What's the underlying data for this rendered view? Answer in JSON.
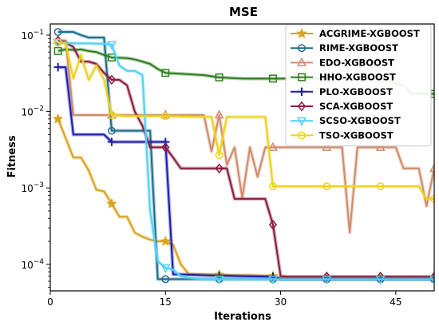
{
  "chart_data": {
    "type": "line",
    "title": "MSE",
    "xlabel": "Iterations",
    "ylabel": "Fitness",
    "yscale": "log",
    "xlim": [
      0,
      50
    ],
    "ylim": [
      4.5e-05,
      0.14
    ],
    "xticks": [
      0,
      15,
      30,
      45
    ],
    "yticks": [
      {
        "value": 0.0001,
        "base": "10",
        "exp": "−4"
      },
      {
        "value": 0.001,
        "base": "10",
        "exp": "−3"
      },
      {
        "value": 0.01,
        "base": "10",
        "exp": "−2"
      },
      {
        "value": 0.1,
        "base": "10",
        "exp": "−1"
      }
    ],
    "grid": false,
    "legend_position": "top-right",
    "series": [
      {
        "name": "ACGRIME-XGBOOST",
        "color": "#D9A520",
        "marker": "star",
        "marker_x": [
          1,
          8,
          15,
          22,
          29,
          36,
          43,
          50
        ],
        "x": [
          1,
          2,
          3,
          4,
          5,
          6,
          7,
          8,
          9,
          10,
          11,
          12,
          13,
          14,
          15,
          16,
          17,
          18,
          20,
          22,
          24,
          26,
          28,
          29,
          30,
          33,
          36,
          40,
          43,
          46,
          50
        ],
        "y": [
          0.008,
          0.0045,
          0.0025,
          0.0025,
          0.0017,
          0.00095,
          0.0009,
          0.00062,
          0.00042,
          0.00042,
          0.00026,
          0.00023,
          0.00021,
          0.0002,
          0.0002,
          0.00018,
          0.0001,
          7.5e-05,
          7.4e-05,
          7.3e-05,
          7.2e-05,
          7.2e-05,
          7.1e-05,
          7e-05,
          6.6e-05,
          6.6e-05,
          6.6e-05,
          6.6e-05,
          6.6e-05,
          6.6e-05,
          6.6e-05
        ]
      },
      {
        "name": "RIME-XGBOOST",
        "color": "#1F6E8C",
        "marker": "circle",
        "marker_x": [
          1,
          8,
          15,
          22,
          29,
          36,
          43,
          50
        ],
        "x": [
          1,
          3,
          4,
          5,
          7,
          8,
          9,
          10,
          11,
          12,
          13,
          14,
          15,
          20,
          25,
          30,
          35,
          40,
          45,
          50
        ],
        "y": [
          0.11,
          0.11,
          0.1,
          0.093,
          0.093,
          0.0056,
          0.0056,
          0.0056,
          0.0056,
          0.0056,
          0.0056,
          6.4e-05,
          6.4e-05,
          6.4e-05,
          6.4e-05,
          6.4e-05,
          6.4e-05,
          6.4e-05,
          6.4e-05,
          6.4e-05
        ]
      },
      {
        "name": "EDO-XGBOOST",
        "color": "#D08B6B",
        "marker": "triangle",
        "marker_x": [
          1,
          8,
          15,
          22,
          29,
          36,
          43,
          50
        ],
        "x": [
          1,
          2,
          3,
          4,
          5,
          6,
          7,
          8,
          10,
          15,
          20,
          21,
          22,
          23,
          24,
          25,
          26,
          27,
          28,
          29,
          30,
          33,
          36,
          37,
          38,
          39,
          40,
          41,
          43,
          45,
          46,
          47,
          48,
          49,
          50
        ],
        "y": [
          0.085,
          0.085,
          0.009,
          0.009,
          0.009,
          0.009,
          0.009,
          0.009,
          0.009,
          0.009,
          0.009,
          0.003,
          0.009,
          0.002,
          0.0034,
          0.00074,
          0.0034,
          0.0014,
          0.0034,
          0.0034,
          0.0034,
          0.0034,
          0.0034,
          0.0034,
          0.0034,
          0.00026,
          0.0034,
          0.0034,
          0.0034,
          0.0034,
          0.0018,
          0.0018,
          0.0018,
          0.00058,
          0.0018
        ]
      },
      {
        "name": "HHO-XGBOOST",
        "color": "#2E7D1F",
        "marker": "square",
        "marker_x": [
          1,
          8,
          15,
          22,
          29,
          36,
          43,
          50
        ],
        "x": [
          1,
          2,
          3,
          4,
          5,
          6,
          7,
          8,
          10,
          11,
          12,
          13,
          14,
          15,
          20,
          22,
          25,
          29,
          36,
          43,
          46,
          47,
          48,
          50
        ],
        "y": [
          0.062,
          0.065,
          0.064,
          0.065,
          0.062,
          0.06,
          0.055,
          0.051,
          0.05,
          0.048,
          0.045,
          0.042,
          0.036,
          0.032,
          0.03,
          0.028,
          0.027,
          0.027,
          0.027,
          0.027,
          0.022,
          0.017,
          0.017,
          0.017
        ]
      },
      {
        "name": "PLO-XGBOOST",
        "color": "#1E1EAE",
        "marker": "plus",
        "marker_x": [
          1,
          8,
          15,
          22,
          29,
          36,
          43,
          50
        ],
        "x": [
          1,
          2,
          3,
          7,
          8,
          14,
          15,
          16,
          17,
          20,
          22,
          25,
          28,
          29,
          30,
          35,
          40,
          45,
          50
        ],
        "y": [
          0.038,
          0.038,
          0.005,
          0.005,
          0.004,
          0.004,
          0.004,
          7.4e-05,
          7.4e-05,
          7.2e-05,
          7.1e-05,
          7e-05,
          6.9e-05,
          6.9e-05,
          6.4e-05,
          6.4e-05,
          6.4e-05,
          6.4e-05,
          6.4e-05
        ]
      },
      {
        "name": "SCA-XGBOOST",
        "color": "#8B1E3F",
        "marker": "diamond",
        "marker_x": [
          1,
          8,
          15,
          22,
          29,
          36,
          43,
          50
        ],
        "x": [
          1,
          2,
          3,
          4,
          5,
          6,
          7,
          8,
          9,
          10,
          11,
          12,
          13,
          14,
          15,
          16,
          17,
          18,
          20,
          22,
          23,
          24,
          25,
          26,
          27,
          28,
          29,
          30,
          31,
          33,
          36,
          40,
          43,
          46,
          50
        ],
        "y": [
          0.085,
          0.08,
          0.07,
          0.045,
          0.045,
          0.042,
          0.032,
          0.026,
          0.026,
          0.022,
          0.01,
          0.0065,
          0.0034,
          0.0034,
          0.0034,
          0.0025,
          0.0018,
          0.0018,
          0.0018,
          0.0018,
          0.0018,
          0.00072,
          0.00072,
          0.00072,
          0.00072,
          0.00072,
          0.00033,
          7e-05,
          6.9e-05,
          6.9e-05,
          6.9e-05,
          6.9e-05,
          6.9e-05,
          6.9e-05,
          6.9e-05
        ]
      },
      {
        "name": "SCSO-XGBOOST",
        "color": "#4FD2F5",
        "marker": "triangle-down",
        "marker_x": [
          1,
          8,
          15,
          22,
          29,
          36,
          43,
          50
        ],
        "x": [
          1,
          3,
          5,
          7,
          8,
          9,
          10,
          11,
          12,
          13,
          14,
          15,
          16,
          17,
          18,
          19,
          20,
          22,
          25,
          29,
          36,
          43,
          50
        ],
        "y": [
          0.08,
          0.078,
          0.078,
          0.077,
          0.075,
          0.04,
          0.034,
          0.034,
          0.03,
          0.0005,
          0.00011,
          9e-05,
          8.5e-05,
          7e-05,
          6.7e-05,
          6.5e-05,
          6.4e-05,
          6.4e-05,
          6.4e-05,
          6.4e-05,
          6.4e-05,
          6.4e-05,
          6.4e-05
        ]
      },
      {
        "name": "TSO-XGBOOST",
        "color": "#EDD21D",
        "marker": "circle-open",
        "marker_x": [
          1,
          8,
          15,
          22,
          29,
          36,
          43,
          50
        ],
        "x": [
          1,
          2,
          3,
          4,
          5,
          6,
          7,
          8,
          10,
          15,
          20,
          21,
          22,
          23,
          25,
          28,
          29,
          30,
          36,
          43,
          45,
          46,
          47,
          48,
          49,
          50
        ],
        "y": [
          0.08,
          0.078,
          0.027,
          0.055,
          0.026,
          0.04,
          0.026,
          0.009,
          0.0087,
          0.0087,
          0.0085,
          0.0085,
          0.0027,
          0.0085,
          0.0085,
          0.0085,
          0.00105,
          0.00105,
          0.00105,
          0.00105,
          0.00105,
          0.00105,
          0.00105,
          0.00105,
          0.00072,
          0.00072
        ]
      }
    ]
  }
}
